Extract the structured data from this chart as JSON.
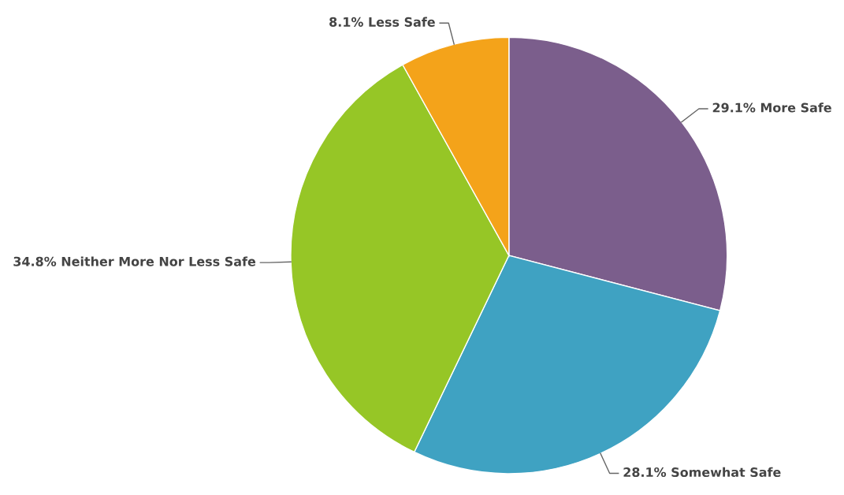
{
  "chart_data": {
    "type": "pie",
    "categories": [
      "More Safe",
      "Somewhat Safe",
      "Neither More Nor Less Safe",
      "Less Safe"
    ],
    "values": [
      29.1,
      28.1,
      34.8,
      8.1
    ],
    "value_labels": [
      "29.1%",
      "28.1%",
      "34.8%",
      "8.1%"
    ],
    "colors": [
      "#7b5e8c",
      "#3fa2c2",
      "#96c626",
      "#f4a31a"
    ]
  }
}
